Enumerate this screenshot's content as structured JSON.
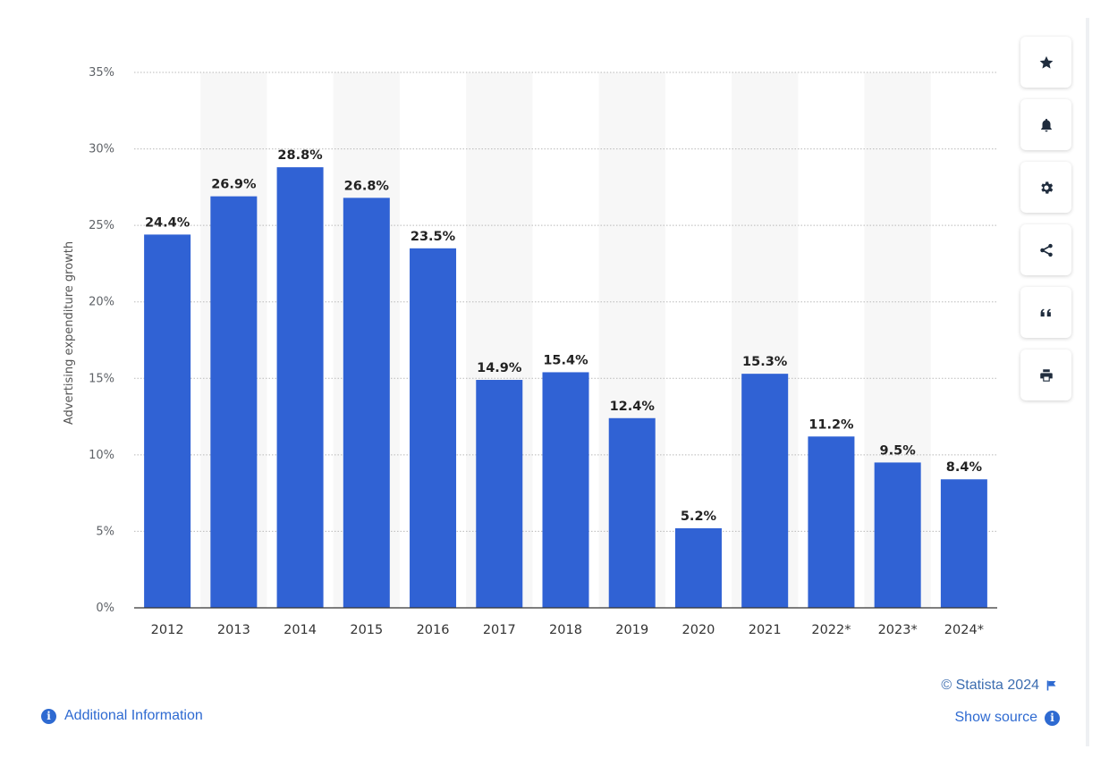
{
  "chart_data": {
    "type": "bar",
    "categories": [
      "2012",
      "2013",
      "2014",
      "2015",
      "2016",
      "2017",
      "2018",
      "2019",
      "2020",
      "2021",
      "2022*",
      "2023*",
      "2024*"
    ],
    "values": [
      24.4,
      26.9,
      28.8,
      26.8,
      23.5,
      14.9,
      15.4,
      12.4,
      5.2,
      15.3,
      11.2,
      9.5,
      8.4
    ],
    "value_labels": [
      "24.4%",
      "26.9%",
      "28.8%",
      "26.8%",
      "23.5%",
      "14.9%",
      "15.4%",
      "12.4%",
      "5.2%",
      "15.3%",
      "11.2%",
      "9.5%",
      "8.4%"
    ],
    "ylabel": "Advertising expenditure growth",
    "xlabel": "",
    "ylim": [
      0,
      35
    ],
    "y_ticks": [
      0,
      5,
      10,
      15,
      20,
      25,
      30,
      35
    ],
    "y_tick_labels": [
      "0%",
      "5%",
      "10%",
      "15%",
      "20%",
      "25%",
      "30%",
      "35%"
    ],
    "grid": true,
    "bar_color": "#3062d4",
    "alt_band_color": "#f7f7f7"
  },
  "toolbar": {
    "buttons": [
      {
        "name": "star-icon"
      },
      {
        "name": "bell-icon"
      },
      {
        "name": "gear-icon"
      },
      {
        "name": "share-icon"
      },
      {
        "name": "quote-icon"
      },
      {
        "name": "print-icon"
      }
    ]
  },
  "footer": {
    "copyright": "© Statista 2024",
    "show_source": "Show source",
    "additional_info": "Additional Information",
    "link_color": "#2e6ad1"
  }
}
